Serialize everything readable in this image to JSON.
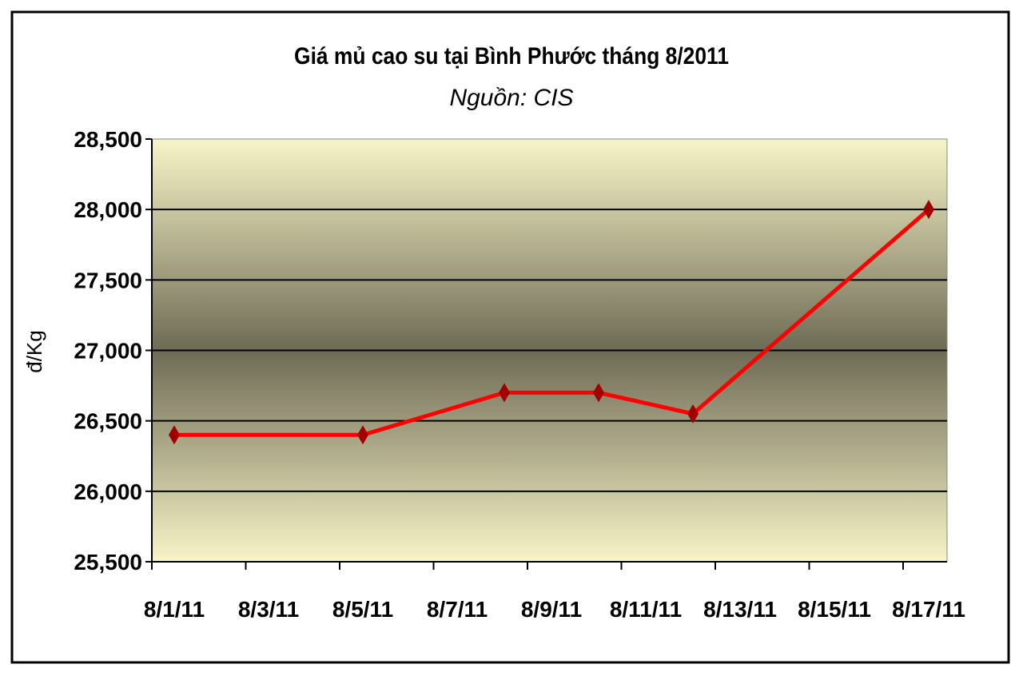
{
  "chart_data": {
    "type": "line",
    "title": "Giá mủ cao su tại Bình Phước tháng 8/2011",
    "subtitle": "Nguồn: CIS",
    "xlabel": "",
    "ylabel": "đ/Kg",
    "ylim": [
      25500,
      28500
    ],
    "yticks": [
      "25,500",
      "26,000",
      "26,500",
      "27,000",
      "27,500",
      "28,000",
      "28,500"
    ],
    "ytick_values": [
      25500,
      26000,
      26500,
      27000,
      27500,
      28000,
      28500
    ],
    "xticks": [
      "8/1/11",
      "8/3/11",
      "8/5/11",
      "8/7/11",
      "8/9/11",
      "8/11/11",
      "8/13/11",
      "8/15/11",
      "8/17/11"
    ],
    "x": [
      "8/1/11",
      "8/5/11",
      "8/8/11",
      "8/10/11",
      "8/12/11",
      "8/17/11"
    ],
    "values": [
      26400,
      26400,
      26700,
      26700,
      26550,
      28000
    ],
    "grid": true,
    "colors": {
      "line": "#ff0000",
      "marker": "#a00000",
      "plot_light": "#f8f4c8",
      "plot_dark": "#6e6b55"
    }
  }
}
